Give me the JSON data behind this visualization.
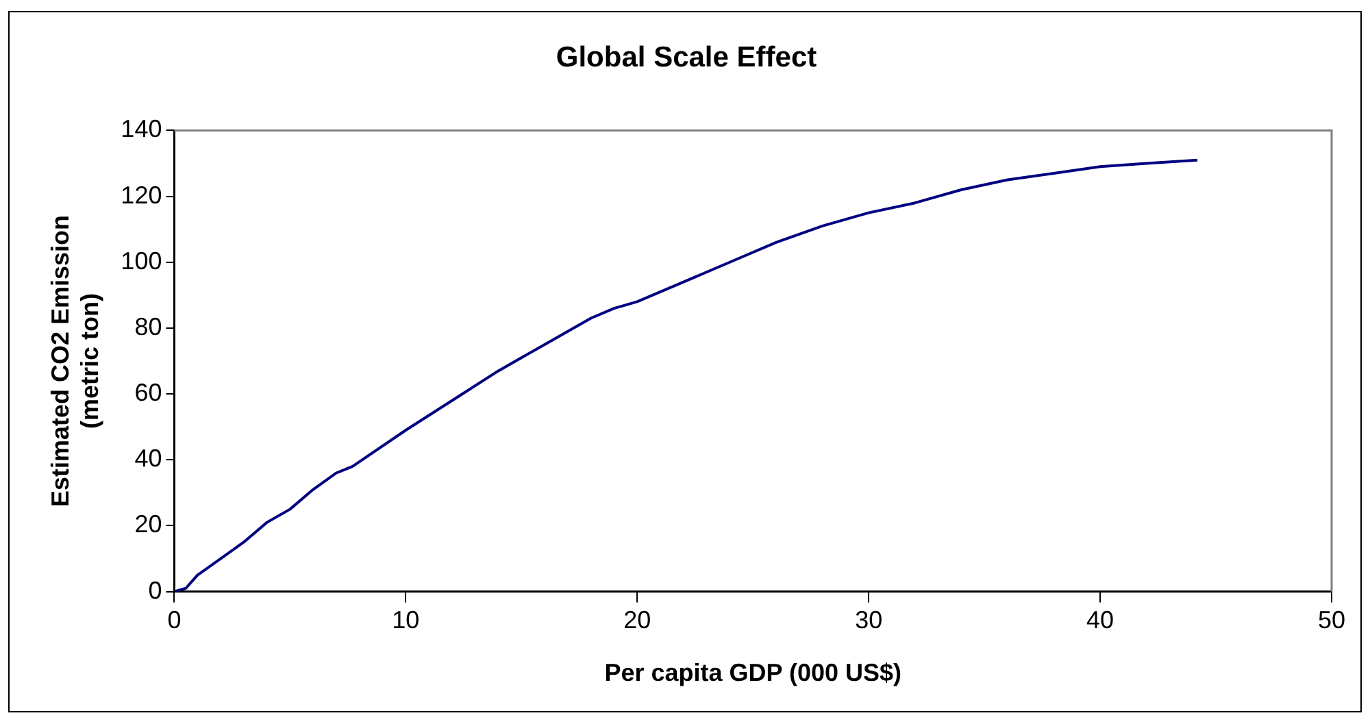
{
  "chart_data": {
    "type": "line",
    "title": "Global Scale Effect",
    "xlabel": "Per capita GDP (000 US$)",
    "ylabel": "Estimated CO2 Emission\n(metric ton)",
    "x": [
      0,
      0.5,
      1,
      2,
      3,
      4,
      5,
      6,
      7,
      7.7,
      10,
      12,
      14,
      16,
      18,
      19,
      20,
      22,
      24,
      26,
      28,
      30,
      32,
      34,
      36,
      38,
      40,
      42,
      44.2
    ],
    "series": [
      {
        "color": "#000080",
        "values": [
          0,
          1,
          5,
          10,
          15,
          21,
          25,
          31,
          36,
          38,
          49,
          58,
          67,
          75,
          83,
          86,
          88,
          94,
          100,
          106,
          111,
          115,
          118,
          122,
          125,
          127,
          129,
          130,
          131
        ]
      }
    ],
    "xlim": [
      0,
      50
    ],
    "xticks": [
      0,
      10,
      20,
      30,
      40,
      50
    ],
    "ylim": [
      0,
      140
    ],
    "yticks": [
      0,
      20,
      40,
      60,
      80,
      100,
      120,
      140
    ],
    "grid": false,
    "legend": false,
    "marker": "none",
    "line_style": "solid"
  }
}
